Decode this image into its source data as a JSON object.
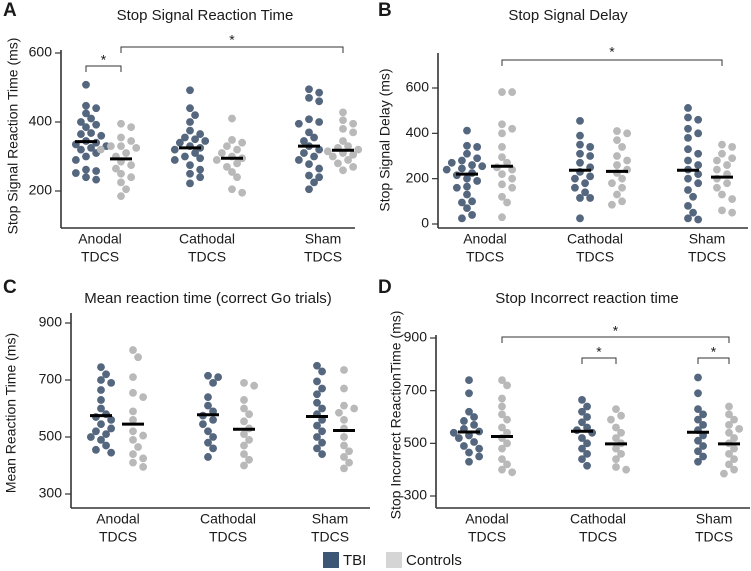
{
  "legend": [
    {
      "label": "TBI",
      "color": "#3e5676"
    },
    {
      "label": "Controls",
      "color": "#d5d5d5"
    }
  ],
  "chart_data": [
    {
      "panel": "A",
      "type": "scatter",
      "title": "Stop Signal Reaction Time",
      "xlabel": "",
      "ylabel": "Stop Signal Reaction Time (ms)",
      "yticks": [
        200,
        400,
        600
      ],
      "ylim": [
        90,
        610
      ],
      "categories": [
        [
          "Anodal",
          "TDCS"
        ],
        [
          "Cathodal",
          "TDCS"
        ],
        [
          "Sham",
          "TDCS"
        ]
      ],
      "series": [
        {
          "name": "TBI",
          "color": "#55677f",
          "means": [
            343,
            325,
            330
          ],
          "groups": [
            [
              508,
              447,
              440,
              425,
              410,
              400,
              392,
              385,
              368,
              365,
              360,
              345,
              340,
              335,
              330,
              325,
              320,
              310,
              300,
              290,
              262,
              258,
              252,
              240,
              233
            ],
            [
              492,
              440,
              420,
              400,
              375,
              365,
              355,
              350,
              345,
              340,
              330,
              325,
              320,
              310,
              300,
              295,
              290,
              275,
              262,
              250,
              240,
              222
            ],
            [
              495,
              485,
              470,
              460,
              408,
              400,
              395,
              370,
              355,
              345,
              330,
              320,
              310,
              300,
              290,
              278,
              265,
              245,
              240,
              225,
              205
            ]
          ]
        },
        {
          "name": "Controls",
          "color": "#b9b9b9",
          "means": [
            293,
            295,
            318
          ],
          "groups": [
            [
              395,
              385,
              355,
              345,
              330,
              330,
              325,
              320,
              310,
              300,
              285,
              275,
              265,
              250,
              240,
              225,
              205,
              185
            ],
            [
              410,
              348,
              340,
              330,
              320,
              310,
              300,
              295,
              290,
              280,
              270,
              255,
              240,
              205,
              195
            ],
            [
              428,
              405,
              395,
              380,
              370,
              345,
              330,
              325,
              320,
              315,
              310,
              305,
              300,
              290,
              280,
              270,
              260
            ]
          ]
        }
      ],
      "significance": [
        {
          "a": [
            0,
            0
          ],
          "b": [
            0,
            1
          ],
          "label": "*"
        },
        {
          "a": [
            0,
            1
          ],
          "b": [
            2,
            1
          ],
          "label": "*"
        }
      ]
    },
    {
      "panel": "B",
      "type": "scatter",
      "title": "Stop Signal Delay",
      "xlabel": "",
      "ylabel": "Stop Signal Delay (ms)",
      "yticks": [
        0,
        200,
        400,
        600
      ],
      "ylim": [
        -15,
        740
      ],
      "categories": [
        [
          "Anodal",
          "TDCS"
        ],
        [
          "Cathodal",
          "TDCS"
        ],
        [
          "Sham",
          "TDCS"
        ]
      ],
      "series": [
        {
          "name": "TBI",
          "color": "#55677f",
          "means": [
            220,
            237,
            237
          ],
          "groups": [
            [
              412,
              345,
              340,
              310,
              290,
              280,
              270,
              260,
              255,
              245,
              240,
              225,
              215,
              200,
              190,
              165,
              160,
              130,
              100,
              95,
              70,
              40,
              25
            ],
            [
              455,
              390,
              350,
              340,
              310,
              300,
              270,
              250,
              230,
              210,
              200,
              180,
              160,
              140,
              115,
              115,
              25
            ],
            [
              512,
              470,
              460,
              420,
              400,
              380,
              330,
              310,
              280,
              260,
              240,
              220,
              200,
              180,
              150,
              120,
              80,
              50,
              25,
              20
            ]
          ]
        },
        {
          "name": "Controls",
          "color": "#b9b9b9",
          "means": [
            255,
            232,
            207
          ],
          "groups": [
            [
              582,
              582,
              440,
              420,
              400,
              340,
              295,
              270,
              250,
              240,
              220,
              200,
              175,
              160,
              120,
              95,
              30
            ],
            [
              410,
              400,
              370,
              340,
              300,
              280,
              260,
              240,
              225,
              200,
              180,
              160,
              130,
              100,
              85
            ],
            [
              350,
              340,
              310,
              290,
              280,
              260,
              240,
              220,
              200,
              180,
              160,
              130,
              110,
              60,
              50
            ]
          ]
        }
      ],
      "significance": [
        {
          "a": [
            0,
            1
          ],
          "b": [
            2,
            1
          ],
          "label": "*"
        }
      ]
    },
    {
      "panel": "C",
      "type": "scatter",
      "title": "Mean reaction time (correct Go trials)",
      "xlabel": "",
      "ylabel": "Mean Reaction Time (ms)",
      "yticks": [
        300,
        500,
        700,
        900
      ],
      "ylim": [
        260,
        935
      ],
      "categories": [
        [
          "Anodal",
          "TDCS"
        ],
        [
          "Cathodal",
          "TDCS"
        ],
        [
          "Sham",
          "TDCS"
        ]
      ],
      "series": [
        {
          "name": "TBI",
          "color": "#55677f",
          "means": [
            575,
            578,
            572
          ],
          "groups": [
            [
              745,
              720,
              700,
              690,
              665,
              630,
              600,
              580,
              570,
              560,
              545,
              530,
              520,
              510,
              500,
              490,
              470,
              455,
              445
            ],
            [
              715,
              710,
              690,
              640,
              610,
              590,
              575,
              560,
              545,
              520,
              500,
              480,
              460,
              430
            ],
            [
              750,
              730,
              695,
              670,
              650,
              620,
              600,
              580,
              560,
              540,
              520,
              500,
              480,
              460,
              440
            ]
          ]
        },
        {
          "name": "Controls",
          "color": "#b9b9b9",
          "means": [
            545,
            527,
            523
          ],
          "groups": [
            [
              805,
              780,
              710,
              655,
              640,
              590,
              560,
              520,
              505,
              490,
              465,
              440,
              425,
              410,
              395
            ],
            [
              690,
              680,
              630,
              600,
              580,
              555,
              530,
              510,
              490,
              470,
              440,
              420,
              400
            ],
            [
              735,
              670,
              610,
              600,
              585,
              560,
              530,
              500,
              470,
              450,
              430,
              410,
              390
            ]
          ]
        }
      ],
      "significance": []
    },
    {
      "panel": "D",
      "type": "scatter",
      "title": "Stop Incorrect reaction time",
      "xlabel": "",
      "ylabel": "Stop Incorrect ReactionTime (ms)",
      "yticks": [
        300,
        500,
        700,
        900
      ],
      "ylim": [
        255,
        910
      ],
      "categories": [
        [
          "Anodal",
          "TDCS"
        ],
        [
          "Cathodal",
          "TDCS"
        ],
        [
          "Sham",
          "TDCS"
        ]
      ],
      "series": [
        {
          "name": "TBI",
          "color": "#55677f",
          "means": [
            543,
            546,
            542
          ],
          "groups": [
            [
              740,
              690,
              620,
              600,
              585,
              570,
              555,
              545,
              540,
              530,
              520,
              505,
              490,
              480,
              465,
              450,
              430
            ],
            [
              665,
              640,
              620,
              600,
              580,
              560,
              550,
              540,
              520,
              500,
              480,
              460,
              440,
              415
            ],
            [
              750,
              690,
              630,
              610,
              590,
              570,
              550,
              530,
              510,
              490,
              470,
              450,
              430
            ]
          ]
        },
        {
          "name": "Controls",
          "color": "#b9b9b9",
          "means": [
            526,
            498,
            498
          ],
          "groups": [
            [
              740,
              720,
              670,
              640,
              610,
              590,
              560,
              540,
              520,
              500,
              480,
              440,
              420,
              400,
              390
            ],
            [
              630,
              605,
              590,
              560,
              540,
              520,
              500,
              480,
              460,
              440,
              410,
              400
            ],
            [
              640,
              610,
              590,
              570,
              555,
              540,
              520,
              500,
              480,
              460,
              440,
              420,
              400,
              385
            ]
          ]
        }
      ],
      "significance": [
        {
          "a": [
            0,
            1
          ],
          "b": [
            2,
            1
          ],
          "label": "*"
        },
        {
          "a": [
            1,
            0
          ],
          "b": [
            1,
            1
          ],
          "label": "*"
        },
        {
          "a": [
            2,
            0
          ],
          "b": [
            2,
            1
          ],
          "label": "*"
        }
      ]
    }
  ]
}
